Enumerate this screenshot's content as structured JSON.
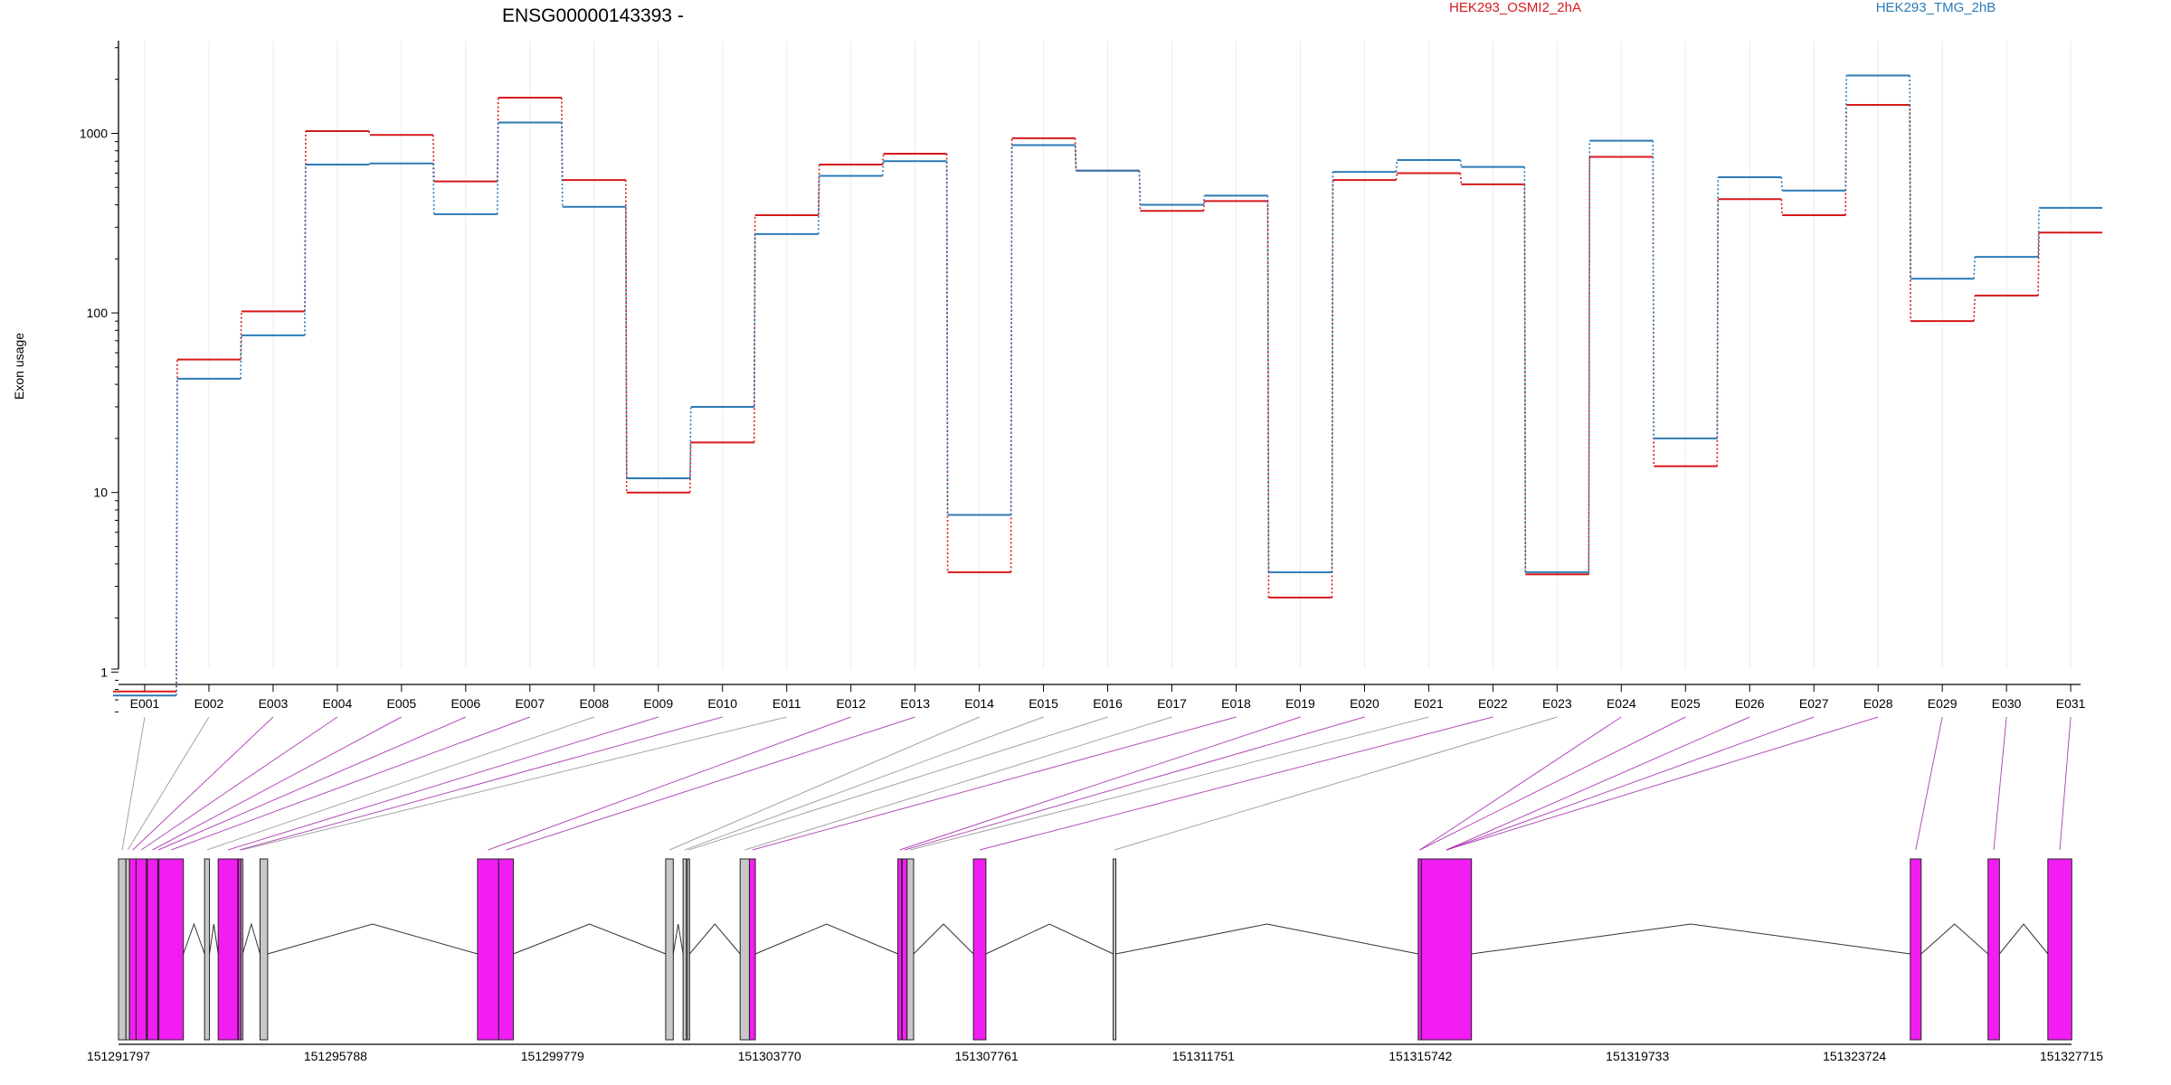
{
  "chart_data": {
    "type": "line",
    "title": "ENSG00000143393 -",
    "xlabel": "",
    "ylabel": "Exon usage",
    "yscale": "log",
    "ylim": [
      0.5,
      3000
    ],
    "yticks": [
      1,
      10,
      100,
      1000
    ],
    "ytick_labels": [
      "1",
      "10",
      "100",
      "1000"
    ],
    "legend_placement": "top-right",
    "grid": "vertical",
    "categories": [
      "E001",
      "E002",
      "E003",
      "E004",
      "E005",
      "E006",
      "E007",
      "E008",
      "E009",
      "E010",
      "E011",
      "E012",
      "E013",
      "E014",
      "E015",
      "E016",
      "E017",
      "E018",
      "E019",
      "E020",
      "E021",
      "E022",
      "E023",
      "E024",
      "E025",
      "E026",
      "E027",
      "E028",
      "E029",
      "E030",
      "E031"
    ],
    "series": [
      {
        "name": "HEK293_OSMI2_2hA",
        "color": "#d7191c",
        "values": [
          0.78,
          55,
          102,
          1030,
          980,
          540,
          1580,
          550,
          10,
          19,
          350,
          670,
          770,
          3.6,
          940,
          620,
          370,
          420,
          2.6,
          550,
          600,
          520,
          3.5,
          740,
          14,
          430,
          350,
          1440,
          90,
          125,
          280
        ]
      },
      {
        "name": "HEK293_TMG_2hB",
        "color": "#2c7bb6",
        "values": [
          0.74,
          43,
          75,
          670,
          680,
          355,
          1150,
          390,
          12,
          30,
          275,
          580,
          700,
          7.5,
          860,
          620,
          400,
          450,
          3.6,
          610,
          710,
          650,
          3.6,
          910,
          20,
          570,
          480,
          2100,
          155,
          205,
          385
        ]
      }
    ],
    "gene_model": {
      "coordinate_ticks": [
        "151291797",
        "151295788",
        "151299779",
        "151303770",
        "151307761",
        "151311751",
        "151315742",
        "151319733",
        "151323724",
        "151327715"
      ],
      "coordinate_values": [
        151291797,
        151295788,
        151299779,
        151303770,
        151307761,
        151311751,
        151315742,
        151319733,
        151323724,
        151327715
      ],
      "exon_color": "#f21df2",
      "nontested_color": "#c8c8c8",
      "exons": [
        {
          "start": 151291797,
          "end": 151291934,
          "tested": false
        },
        {
          "start": 151291934,
          "end": 151292000,
          "tested": false
        },
        {
          "start": 151292000,
          "end": 151292120,
          "tested": true
        },
        {
          "start": 151292120,
          "end": 151292310,
          "tested": true
        },
        {
          "start": 151292310,
          "end": 151292330,
          "tested": true
        },
        {
          "start": 151292330,
          "end": 151292520,
          "tested": true
        },
        {
          "start": 151292520,
          "end": 151292540,
          "tested": true
        },
        {
          "start": 151292540,
          "end": 151292990,
          "tested": true
        },
        {
          "start": 151293380,
          "end": 151293470,
          "tested": false
        },
        {
          "start": 151293630,
          "end": 151293990,
          "tested": true
        },
        {
          "start": 151294000,
          "end": 151294050,
          "tested": true
        },
        {
          "start": 151294050,
          "end": 151294080,
          "tested": false
        },
        {
          "start": 151294400,
          "end": 151294540,
          "tested": false
        },
        {
          "start": 151298400,
          "end": 151298790,
          "tested": true
        },
        {
          "start": 151298790,
          "end": 151299060,
          "tested": true
        },
        {
          "start": 151301860,
          "end": 151302000,
          "tested": false
        },
        {
          "start": 151302180,
          "end": 151302240,
          "tested": false
        },
        {
          "start": 151302260,
          "end": 151302300,
          "tested": false
        },
        {
          "start": 151303230,
          "end": 151303400,
          "tested": false
        },
        {
          "start": 151303400,
          "end": 151303510,
          "tested": true
        },
        {
          "start": 151306130,
          "end": 151306200,
          "tested": true
        },
        {
          "start": 151306210,
          "end": 151306300,
          "tested": true
        },
        {
          "start": 151306300,
          "end": 151306420,
          "tested": false
        },
        {
          "start": 151307520,
          "end": 151307750,
          "tested": true
        },
        {
          "start": 151310090,
          "end": 151310140,
          "tested": false
        },
        {
          "start": 151315700,
          "end": 151315760,
          "tested": true
        },
        {
          "start": 151315760,
          "end": 151316680,
          "tested": true
        },
        {
          "start": 151324750,
          "end": 151324950,
          "tested": true
        },
        {
          "start": 151326180,
          "end": 151326390,
          "tested": true
        },
        {
          "start": 151327280,
          "end": 151327720,
          "tested": true
        }
      ],
      "category_links": [
        {
          "category": "E001",
          "exon": 0
        },
        {
          "category": "E002",
          "exon": 1
        },
        {
          "category": "E003",
          "exon": 2
        },
        {
          "category": "E004",
          "exon": 3
        },
        {
          "category": "E005",
          "exon": 5
        },
        {
          "category": "E006",
          "exon": 6
        },
        {
          "category": "E007",
          "exon": 7
        },
        {
          "category": "E008",
          "exon": 8
        },
        {
          "category": "E009",
          "exon": 9
        },
        {
          "category": "E010",
          "exon": 10
        },
        {
          "category": "E011",
          "exon": 11
        },
        {
          "category": "E012",
          "exon": 13
        },
        {
          "category": "E013",
          "exon": 14
        },
        {
          "category": "E014",
          "exon": 15
        },
        {
          "category": "E015",
          "exon": 16
        },
        {
          "category": "E016",
          "exon": 17
        },
        {
          "category": "E017",
          "exon": 18
        },
        {
          "category": "E018",
          "exon": 19
        },
        {
          "category": "E019",
          "exon": 20
        },
        {
          "category": "E020",
          "exon": 21
        },
        {
          "category": "E021",
          "exon": 22
        },
        {
          "category": "E022",
          "exon": 23
        },
        {
          "category": "E023",
          "exon": 24
        },
        {
          "category": "E024",
          "exon": 25
        },
        {
          "category": "E025",
          "exon": 25
        },
        {
          "category": "E026",
          "exon": 26
        },
        {
          "category": "E027",
          "exon": 26
        },
        {
          "category": "E028",
          "exon": 26
        },
        {
          "category": "E029",
          "exon": 27
        },
        {
          "category": "E030",
          "exon": 28
        },
        {
          "category": "E031",
          "exon": 29
        }
      ]
    }
  }
}
